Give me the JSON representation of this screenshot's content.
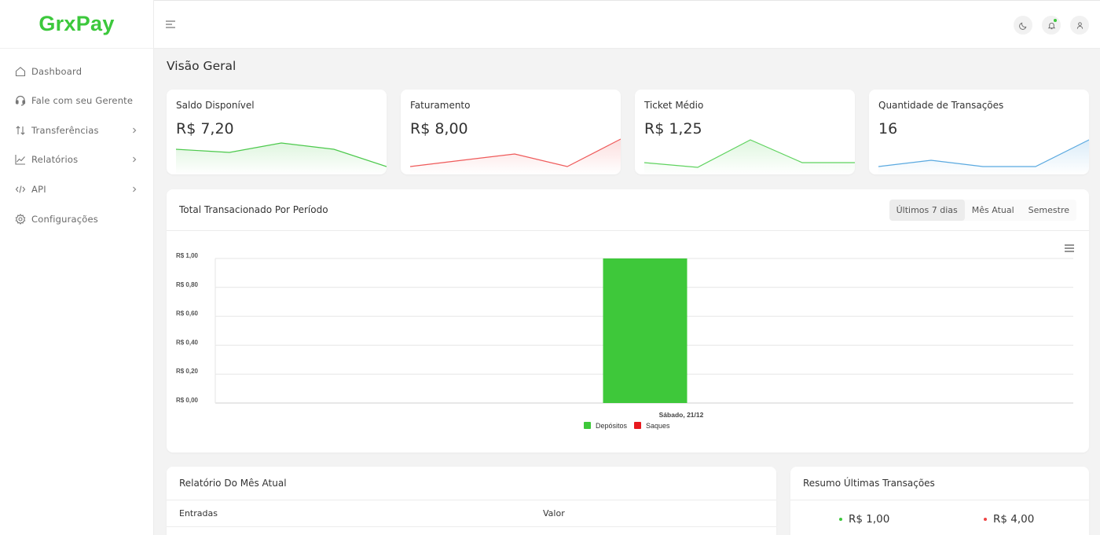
{
  "brand": {
    "logo": "GrxPay",
    "color": "#3cc83c"
  },
  "sidebar": {
    "items": [
      {
        "label": "Dashboard",
        "icon": "home-icon",
        "has_submenu": false
      },
      {
        "label": "Fale com seu Gerente",
        "icon": "headset-icon",
        "has_submenu": false
      },
      {
        "label": "Transferências",
        "icon": "arrows-updown-icon",
        "has_submenu": true
      },
      {
        "label": "Relatórios",
        "icon": "chart-line-icon",
        "has_submenu": true
      },
      {
        "label": "API",
        "icon": "code-icon",
        "has_submenu": true
      },
      {
        "label": "Configurações",
        "icon": "gear-icon",
        "has_submenu": false
      }
    ]
  },
  "topbar": {
    "icons": [
      "menu-icon",
      "moon-icon",
      "bell-icon",
      "user-icon"
    ]
  },
  "page": {
    "title": "Visão Geral"
  },
  "stats": [
    {
      "label": "Saldo Disponível",
      "value": "R$ 7,20",
      "color": "#4cc94c"
    },
    {
      "label": "Faturamento",
      "value": "R$ 8,00",
      "color": "#ef5a5a"
    },
    {
      "label": "Ticket Médio",
      "value": "R$ 1,25",
      "color": "#5fd35f"
    },
    {
      "label": "Quantidade de Transações",
      "value": "16",
      "color": "#5aa9e0"
    }
  ],
  "period_panel": {
    "title": "Total Transacionado Por Período",
    "tabs": [
      "Últimos 7 dias",
      "Mês Atual",
      "Semestre"
    ],
    "active_tab": "Últimos 7 dias"
  },
  "chart_data": {
    "type": "bar",
    "categories": [
      "Sábado, 21/12"
    ],
    "series": [
      {
        "name": "Depósitos",
        "values": [
          1.0
        ],
        "color": "#3ec83a"
      },
      {
        "name": "Saques",
        "values": [
          0.0
        ],
        "color": "#e8191e"
      }
    ],
    "y_ticks": [
      "R$ 1,00",
      "R$ 0,80",
      "R$ 0,60",
      "R$ 0,40",
      "R$ 0,20",
      "R$ 0,00"
    ],
    "ylim": [
      0,
      1.0
    ],
    "grid": true,
    "legend_position": "bottom"
  },
  "report_panel": {
    "title": "Relatório Do Mês Atual",
    "columns": [
      "Entradas",
      "Valor"
    ]
  },
  "summary_panel": {
    "title": "Resumo Últimas Transações",
    "items": [
      {
        "value": "R$ 1,00",
        "color": "#3cc83c"
      },
      {
        "value": "R$ 4,00",
        "color": "#ef4444"
      }
    ]
  }
}
